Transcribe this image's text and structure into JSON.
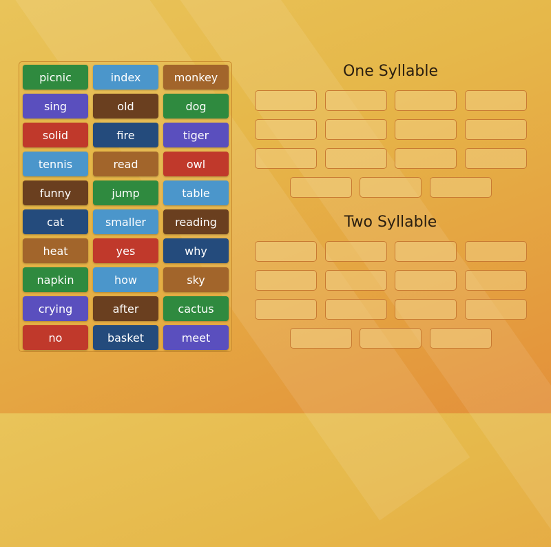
{
  "groups": [
    {
      "title": "One Syllable",
      "slots": 15
    },
    {
      "title": "Two Syllable",
      "slots": 15
    }
  ],
  "tiles": [
    {
      "word": "picnic",
      "color": "#2f8a3f"
    },
    {
      "word": "index",
      "color": "#4b96cb"
    },
    {
      "word": "monkey",
      "color": "#a2652b"
    },
    {
      "word": "sing",
      "color": "#5a4fbe"
    },
    {
      "word": "old",
      "color": "#6a3f1f"
    },
    {
      "word": "dog",
      "color": "#2f8a3f"
    },
    {
      "word": "solid",
      "color": "#c0392b"
    },
    {
      "word": "fire",
      "color": "#244b7c"
    },
    {
      "word": "tiger",
      "color": "#5a4fbe"
    },
    {
      "word": "tennis",
      "color": "#4b96cb"
    },
    {
      "word": "read",
      "color": "#a2652b"
    },
    {
      "word": "owl",
      "color": "#c0392b"
    },
    {
      "word": "funny",
      "color": "#6a3f1f"
    },
    {
      "word": "jump",
      "color": "#2f8a3f"
    },
    {
      "word": "table",
      "color": "#4b96cb"
    },
    {
      "word": "cat",
      "color": "#244b7c"
    },
    {
      "word": "smaller",
      "color": "#4b96cb"
    },
    {
      "word": "reading",
      "color": "#6a3f1f"
    },
    {
      "word": "heat",
      "color": "#a2652b"
    },
    {
      "word": "yes",
      "color": "#c0392b"
    },
    {
      "word": "why",
      "color": "#244b7c"
    },
    {
      "word": "napkin",
      "color": "#2f8a3f"
    },
    {
      "word": "how",
      "color": "#4b96cb"
    },
    {
      "word": "sky",
      "color": "#a2652b"
    },
    {
      "word": "crying",
      "color": "#5a4fbe"
    },
    {
      "word": "after",
      "color": "#6a3f1f"
    },
    {
      "word": "cactus",
      "color": "#2f8a3f"
    },
    {
      "word": "no",
      "color": "#c0392b"
    },
    {
      "word": "basket",
      "color": "#244b7c"
    },
    {
      "word": "meet",
      "color": "#5a4fbe"
    }
  ]
}
